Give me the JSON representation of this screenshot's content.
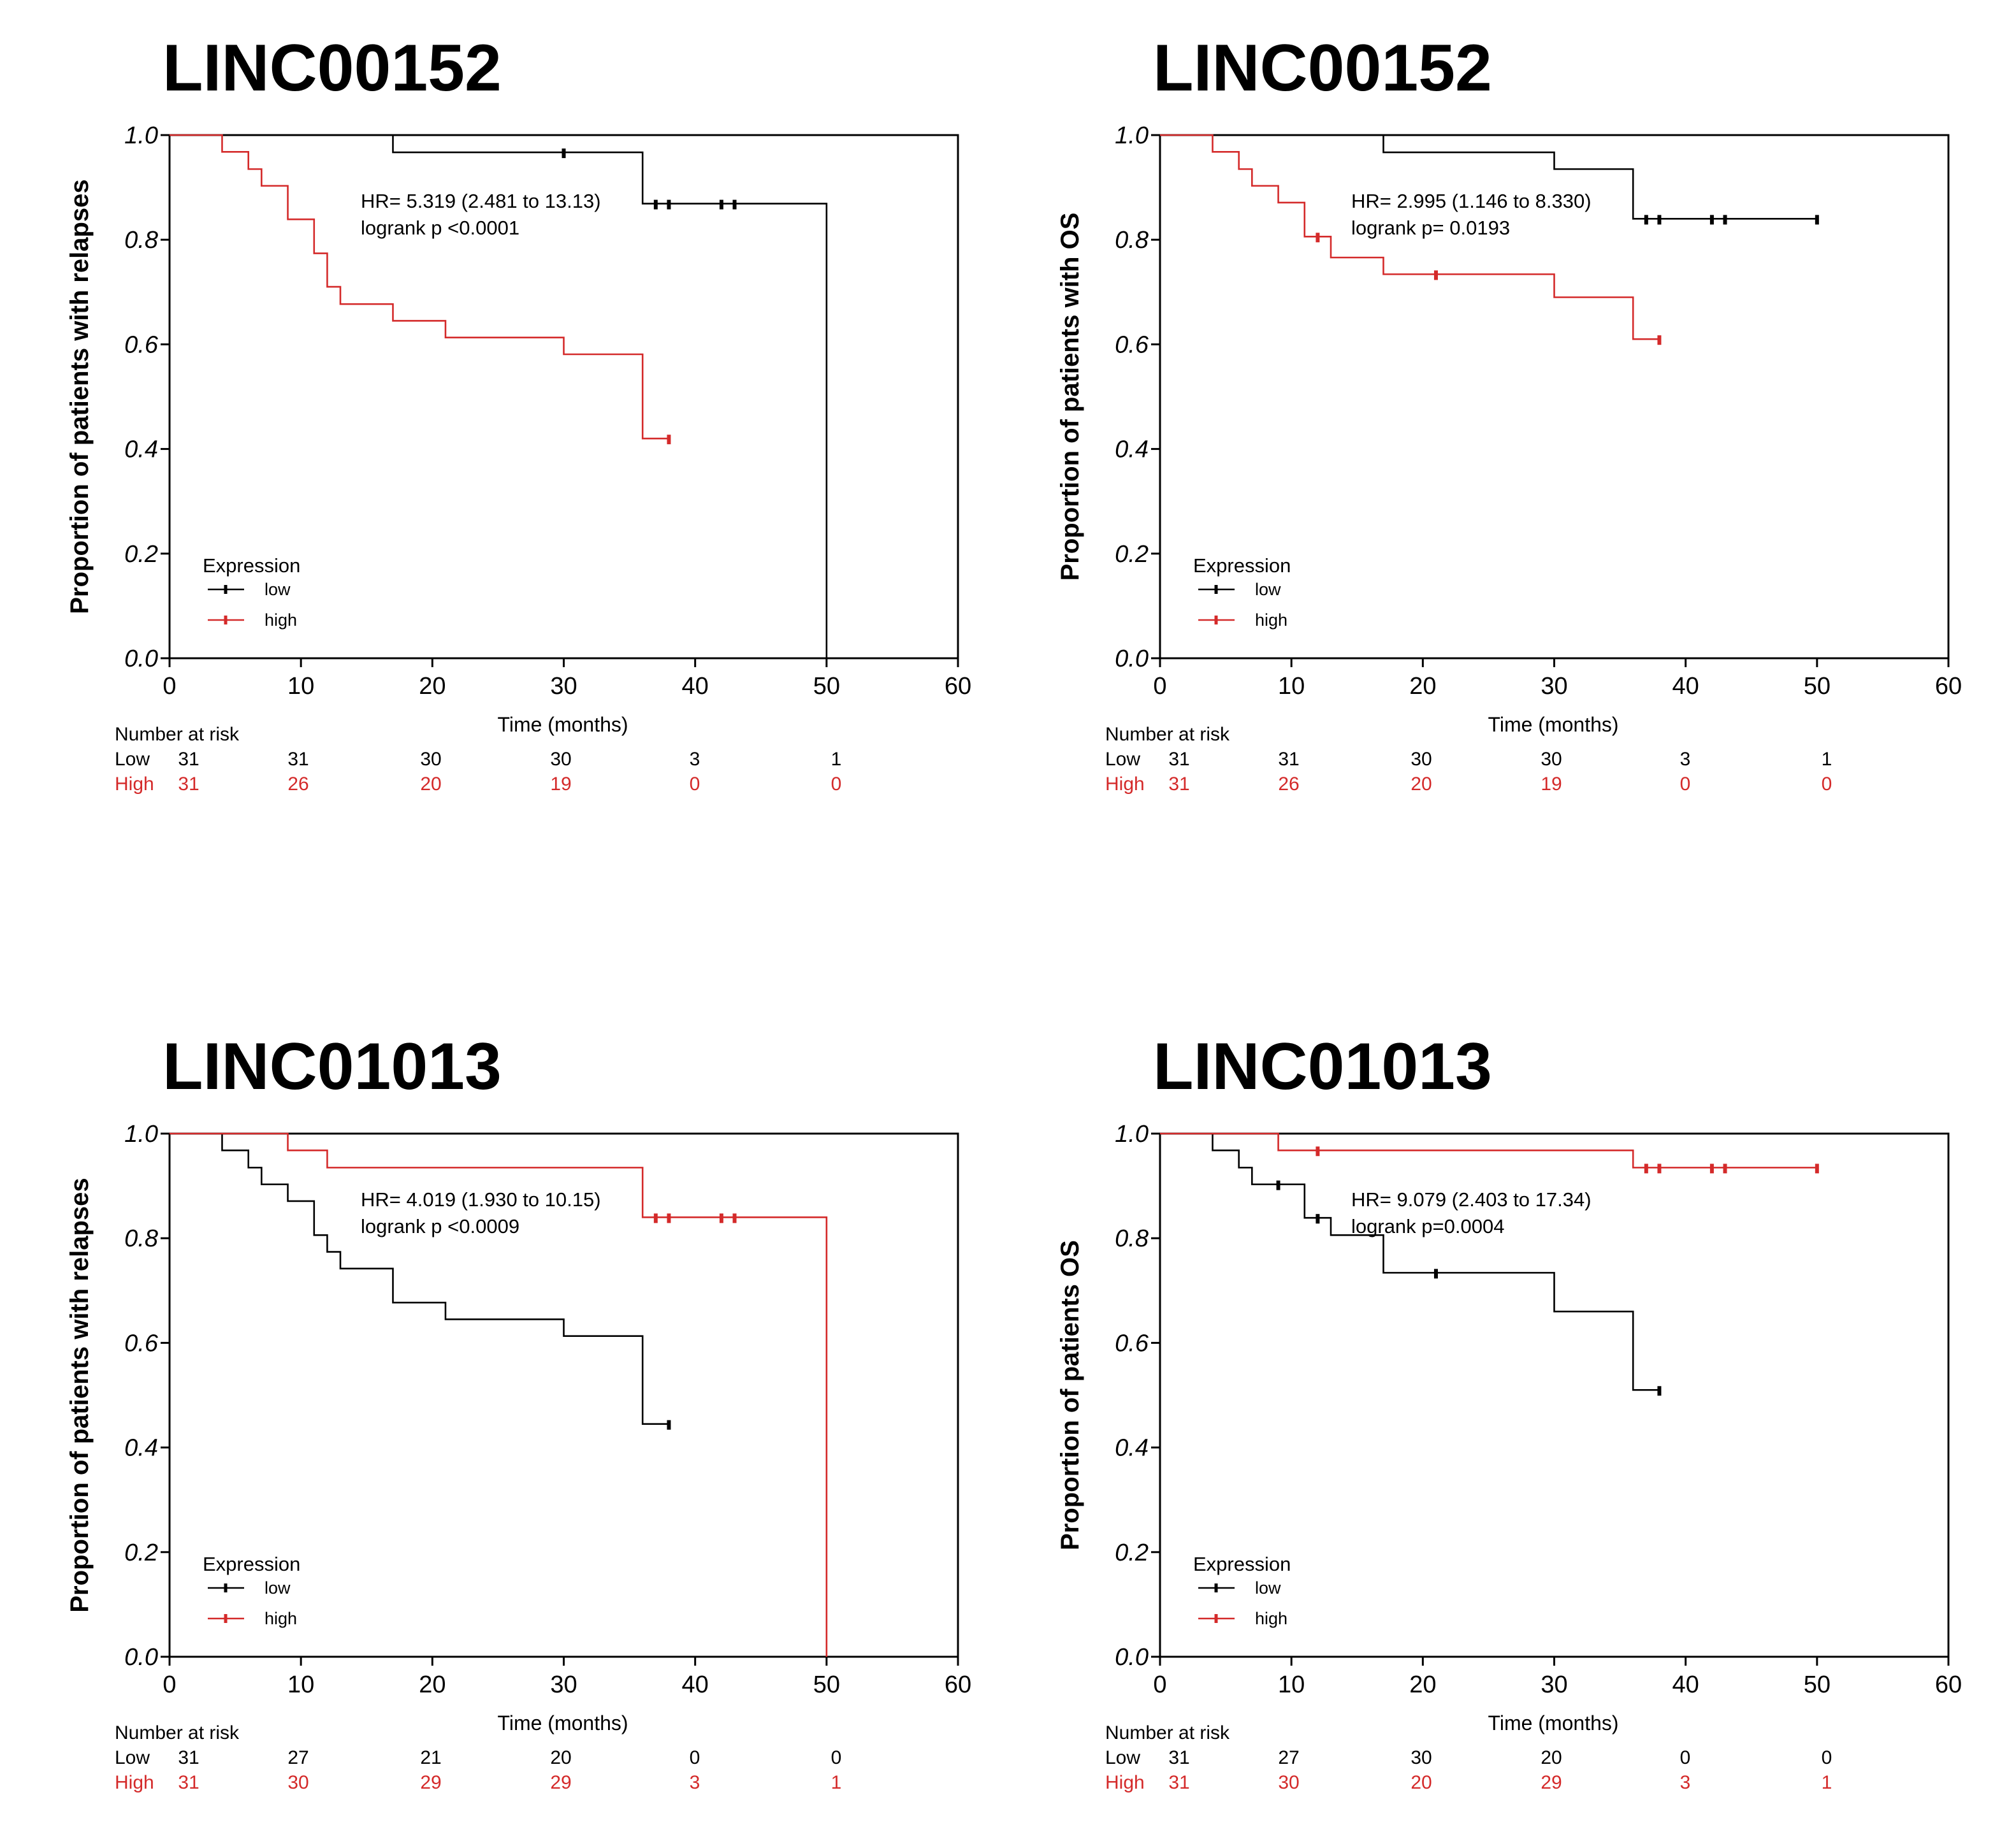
{
  "chart_data": [
    {
      "type": "line",
      "subtype": "kaplan-meier",
      "title": "LINC00152",
      "ylabel": "Proportion of patients with relapses",
      "xlabel": "Time (months)",
      "xlim": [
        0,
        60
      ],
      "ylim": [
        0,
        1
      ],
      "x_ticks": [
        "0",
        "10",
        "20",
        "30",
        "40",
        "50",
        "60"
      ],
      "y_ticks": [
        "0.0",
        "0.2",
        "0.4",
        "0.6",
        "0.8",
        "1.0"
      ],
      "annotation": [
        "HR= 5.319 (2.481 to 13.13)",
        "logrank p <0.0001"
      ],
      "legend": {
        "title": "Expression",
        "position": "bottom-left",
        "entries": [
          "low",
          "high"
        ]
      },
      "series": [
        {
          "name": "low",
          "color": "#000000",
          "steps": [
            [
              0,
              1.0
            ],
            [
              17,
              0.967
            ],
            [
              36,
              0.869
            ],
            [
              50,
              0.0
            ]
          ],
          "end": 50,
          "censors": [
            [
              30,
              0.967
            ],
            [
              37,
              0.869
            ],
            [
              38,
              0.869
            ],
            [
              42,
              0.869
            ],
            [
              43,
              0.869
            ]
          ]
        },
        {
          "name": "high",
          "color": "#d42a2a",
          "steps": [
            [
              0,
              1.0
            ],
            [
              4,
              0.968
            ],
            [
              6,
              0.935
            ],
            [
              7,
              0.903
            ],
            [
              9,
              0.839
            ],
            [
              11,
              0.774
            ],
            [
              12,
              0.71
            ],
            [
              13,
              0.677
            ],
            [
              17,
              0.645
            ],
            [
              21,
              0.613
            ],
            [
              30,
              0.581
            ],
            [
              36,
              0.42
            ]
          ],
          "end": 38,
          "censors": [
            [
              38,
              0.42
            ]
          ]
        }
      ],
      "risk_table": {
        "heading": "Number at risk",
        "times": [
          "0",
          "10",
          "20",
          "30",
          "40",
          "50"
        ],
        "rows": [
          {
            "label": "Low",
            "color": "#000000",
            "values": [
              "31",
              "31",
              "30",
              "30",
              "3",
              "1"
            ]
          },
          {
            "label": "High",
            "color": "#d42a2a",
            "values": [
              "31",
              "26",
              "20",
              "19",
              "0",
              "0"
            ]
          }
        ]
      }
    },
    {
      "type": "line",
      "subtype": "kaplan-meier",
      "title": "LINC00152",
      "ylabel": "Proportion of patients with OS",
      "xlabel": "Time (months)",
      "xlim": [
        0,
        60
      ],
      "ylim": [
        0,
        1
      ],
      "x_ticks": [
        "0",
        "10",
        "20",
        "30",
        "40",
        "50",
        "60"
      ],
      "y_ticks": [
        "0.0",
        "0.2",
        "0.4",
        "0.6",
        "0.8",
        "1.0"
      ],
      "annotation": [
        "HR= 2.995 (1.146 to 8.330)",
        "logrank p= 0.0193"
      ],
      "legend": {
        "title": "Expression",
        "position": "bottom-left",
        "entries": [
          "low",
          "high"
        ]
      },
      "series": [
        {
          "name": "low",
          "color": "#000000",
          "steps": [
            [
              0,
              1.0
            ],
            [
              17,
              0.967
            ],
            [
              30,
              0.935
            ],
            [
              36,
              0.84
            ]
          ],
          "end": 50,
          "censors": [
            [
              37,
              0.84
            ],
            [
              38,
              0.84
            ],
            [
              42,
              0.84
            ],
            [
              43,
              0.84
            ],
            [
              50,
              0.84
            ]
          ]
        },
        {
          "name": "high",
          "color": "#d42a2a",
          "steps": [
            [
              0,
              1.0
            ],
            [
              4,
              0.968
            ],
            [
              6,
              0.935
            ],
            [
              7,
              0.903
            ],
            [
              9,
              0.871
            ],
            [
              11,
              0.806
            ],
            [
              13,
              0.766
            ],
            [
              17,
              0.734
            ],
            [
              30,
              0.69
            ],
            [
              36,
              0.61
            ]
          ],
          "end": 38,
          "censors": [
            [
              12,
              0.806
            ],
            [
              21,
              0.734
            ],
            [
              38,
              0.61
            ]
          ]
        }
      ],
      "risk_table": {
        "heading": "Number at risk",
        "times": [
          "0",
          "10",
          "20",
          "30",
          "40",
          "50"
        ],
        "rows": [
          {
            "label": "Low",
            "color": "#000000",
            "values": [
              "31",
              "31",
              "30",
              "30",
              "3",
              "1"
            ]
          },
          {
            "label": "High",
            "color": "#d42a2a",
            "values": [
              "31",
              "26",
              "20",
              "19",
              "0",
              "0"
            ]
          }
        ]
      }
    },
    {
      "type": "line",
      "subtype": "kaplan-meier",
      "title": "LINC01013",
      "ylabel": "Proportion of patients with relapses",
      "xlabel": "Time (months)",
      "xlim": [
        0,
        60
      ],
      "ylim": [
        0,
        1
      ],
      "x_ticks": [
        "0",
        "10",
        "20",
        "30",
        "40",
        "50",
        "60"
      ],
      "y_ticks": [
        "0.0",
        "0.2",
        "0.4",
        "0.6",
        "0.8",
        "1.0"
      ],
      "annotation": [
        "HR= 4.019 (1.930 to 10.15)",
        "logrank p <0.0009"
      ],
      "legend": {
        "title": "Expression",
        "position": "bottom-left",
        "entries": [
          "low",
          "high"
        ]
      },
      "series": [
        {
          "name": "low",
          "color": "#000000",
          "steps": [
            [
              0,
              1.0
            ],
            [
              4,
              0.968
            ],
            [
              6,
              0.935
            ],
            [
              7,
              0.903
            ],
            [
              9,
              0.871
            ],
            [
              11,
              0.806
            ],
            [
              12,
              0.774
            ],
            [
              13,
              0.742
            ],
            [
              17,
              0.677
            ],
            [
              21,
              0.645
            ],
            [
              30,
              0.613
            ],
            [
              36,
              0.445
            ]
          ],
          "end": 38,
          "censors": [
            [
              38,
              0.445
            ]
          ]
        },
        {
          "name": "high",
          "color": "#d42a2a",
          "steps": [
            [
              0,
              1.0
            ],
            [
              9,
              0.968
            ],
            [
              12,
              0.935
            ],
            [
              36,
              0.84
            ],
            [
              50,
              0.0
            ]
          ],
          "end": 50,
          "censors": [
            [
              37,
              0.84
            ],
            [
              38,
              0.84
            ],
            [
              42,
              0.84
            ],
            [
              43,
              0.84
            ]
          ]
        }
      ],
      "risk_table": {
        "heading": "Number at risk",
        "times": [
          "0",
          "10",
          "20",
          "30",
          "40",
          "50"
        ],
        "rows": [
          {
            "label": "Low",
            "color": "#000000",
            "values": [
              "31",
              "27",
              "21",
              "20",
              "0",
              "0"
            ]
          },
          {
            "label": "High",
            "color": "#d42a2a",
            "values": [
              "31",
              "30",
              "29",
              "29",
              "3",
              "1"
            ]
          }
        ]
      }
    },
    {
      "type": "line",
      "subtype": "kaplan-meier",
      "title": "LINC01013",
      "ylabel": "Proportion of patients OS",
      "xlabel": "Time (months)",
      "xlim": [
        0,
        60
      ],
      "ylim": [
        0,
        1
      ],
      "x_ticks": [
        "0",
        "10",
        "20",
        "30",
        "40",
        "50",
        "60"
      ],
      "y_ticks": [
        "0.0",
        "0.2",
        "0.4",
        "0.6",
        "0.8",
        "1.0"
      ],
      "annotation": [
        "HR= 9.079 (2.403 to 17.34)",
        "logrank p=0.0004"
      ],
      "legend": {
        "title": "Expression",
        "position": "bottom-left",
        "entries": [
          "low",
          "high"
        ]
      },
      "series": [
        {
          "name": "low",
          "color": "#000000",
          "steps": [
            [
              0,
              1.0
            ],
            [
              4,
              0.968
            ],
            [
              6,
              0.935
            ],
            [
              7,
              0.903
            ],
            [
              11,
              0.839
            ],
            [
              13,
              0.806
            ],
            [
              17,
              0.734
            ],
            [
              30,
              0.66
            ],
            [
              36,
              0.51
            ]
          ],
          "end": 38,
          "censors": [
            [
              9,
              0.903
            ],
            [
              12,
              0.839
            ],
            [
              21,
              0.734
            ],
            [
              38,
              0.51
            ]
          ]
        },
        {
          "name": "high",
          "color": "#d42a2a",
          "steps": [
            [
              0,
              1.0
            ],
            [
              9,
              0.968
            ],
            [
              36,
              0.935
            ]
          ],
          "end": 50,
          "censors": [
            [
              12,
              0.968
            ],
            [
              37,
              0.935
            ],
            [
              38,
              0.935
            ],
            [
              42,
              0.935
            ],
            [
              43,
              0.935
            ],
            [
              50,
              0.935
            ]
          ]
        }
      ],
      "risk_table": {
        "heading": "Number at risk",
        "times": [
          "0",
          "10",
          "20",
          "30",
          "40",
          "50"
        ],
        "rows": [
          {
            "label": "Low",
            "color": "#000000",
            "values": [
              "31",
              "27",
              "30",
              "20",
              "0",
              "0"
            ]
          },
          {
            "label": "High",
            "color": "#d42a2a",
            "values": [
              "31",
              "30",
              "20",
              "29",
              "3",
              "1"
            ]
          }
        ]
      }
    }
  ]
}
